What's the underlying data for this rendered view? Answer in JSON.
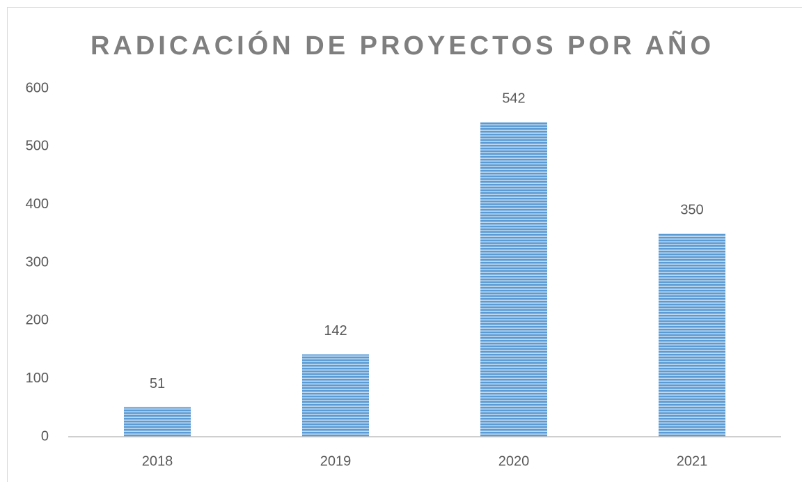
{
  "chart_data": {
    "type": "bar",
    "title": "RADICACIÓN DE PROYECTOS POR AÑO",
    "categories": [
      "2018",
      "2019",
      "2020",
      "2021"
    ],
    "values": [
      51,
      142,
      542,
      350
    ],
    "color": "#5b9bd5",
    "ylim": [
      0,
      600
    ],
    "yticks": [
      0,
      100,
      200,
      300,
      400,
      500,
      600
    ],
    "grid": false
  }
}
